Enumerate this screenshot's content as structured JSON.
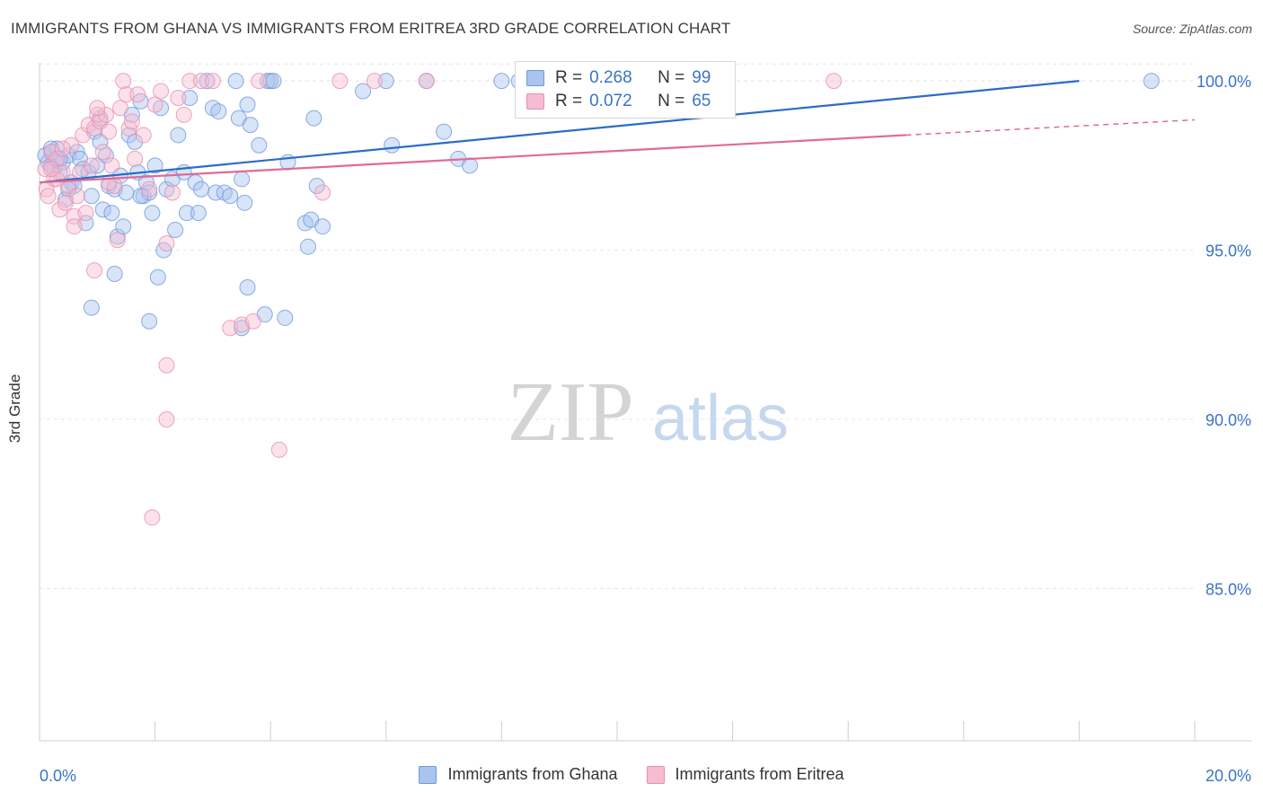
{
  "title": "IMMIGRANTS FROM GHANA VS IMMIGRANTS FROM ERITREA 3RD GRADE CORRELATION CHART",
  "source": "Source: ZipAtlas.com",
  "watermark": {
    "zip": "ZIP",
    "atlas": "atlas"
  },
  "legend_top": [
    {
      "r_label": "R =",
      "r_value": "0.268",
      "n_label": "N =",
      "n_value": "99"
    },
    {
      "r_label": "R =",
      "r_value": "0.072",
      "n_label": "N =",
      "n_value": "65"
    }
  ],
  "legend_bottom": [
    "Immigrants from Ghana",
    "Immigrants from Eritrea"
  ],
  "colors": {
    "ghana_fill": "#a9c4ee",
    "ghana_stroke": "#6f99dd",
    "ghana_line": "#2a6cc9",
    "eritrea_fill": "#f6bcd1",
    "eritrea_stroke": "#e98fb0",
    "eritrea_line": "#e06a95",
    "tick_text": "#3a73c8",
    "grid": "#e4e4e4"
  },
  "chart_data": {
    "type": "scatter",
    "title": "IMMIGRANTS FROM GHANA VS IMMIGRANTS FROM ERITREA 3RD GRADE CORRELATION CHART",
    "xlabel": "",
    "ylabel": "3rd Grade",
    "xlim": [
      0,
      20
    ],
    "ylim": [
      80.5,
      100.8
    ],
    "x_tick_labels": [
      "0.0%",
      "20.0%"
    ],
    "y_ticks": [
      85,
      90,
      95,
      100
    ],
    "y_tick_labels": [
      "85.0%",
      "90.0%",
      "95.0%",
      "100.0%"
    ],
    "grid": true,
    "legend_position": "top-center",
    "series": [
      {
        "name": "Immigrants from Ghana",
        "R": 0.268,
        "N": 99,
        "trend": {
          "x": [
            0,
            18
          ],
          "y": [
            97.0,
            100.0
          ],
          "dashed_to": null
        },
        "points": [
          [
            0.1,
            97.8
          ],
          [
            0.15,
            97.6
          ],
          [
            0.2,
            97.5
          ],
          [
            0.22,
            97.9
          ],
          [
            0.25,
            97.4
          ],
          [
            0.3,
            98.0
          ],
          [
            0.3,
            97.7
          ],
          [
            0.35,
            97.3
          ],
          [
            0.4,
            97.6
          ],
          [
            0.45,
            96.5
          ],
          [
            0.5,
            97.8
          ],
          [
            0.55,
            97.0
          ],
          [
            0.6,
            96.9
          ],
          [
            0.65,
            97.9
          ],
          [
            0.7,
            97.7
          ],
          [
            0.75,
            97.4
          ],
          [
            0.8,
            95.8
          ],
          [
            0.85,
            97.3
          ],
          [
            0.9,
            96.6
          ],
          [
            0.95,
            98.5
          ],
          [
            1.0,
            97.5
          ],
          [
            1.05,
            98.9
          ],
          [
            1.1,
            96.2
          ],
          [
            1.15,
            97.8
          ],
          [
            1.2,
            96.9
          ],
          [
            1.25,
            96.1
          ],
          [
            1.3,
            96.8
          ],
          [
            1.35,
            95.4
          ],
          [
            1.4,
            97.2
          ],
          [
            1.45,
            95.7
          ],
          [
            1.5,
            96.7
          ],
          [
            1.55,
            98.4
          ],
          [
            1.6,
            99.0
          ],
          [
            1.65,
            98.2
          ],
          [
            1.7,
            97.3
          ],
          [
            1.75,
            99.4
          ],
          [
            1.8,
            96.6
          ],
          [
            1.85,
            97.0
          ],
          [
            1.9,
            96.7
          ],
          [
            1.95,
            96.1
          ],
          [
            2.0,
            97.5
          ],
          [
            2.1,
            99.2
          ],
          [
            2.15,
            95.0
          ],
          [
            2.2,
            96.8
          ],
          [
            2.3,
            97.1
          ],
          [
            2.35,
            95.6
          ],
          [
            2.4,
            98.4
          ],
          [
            2.5,
            97.3
          ],
          [
            2.55,
            96.1
          ],
          [
            2.6,
            99.5
          ],
          [
            2.7,
            97.0
          ],
          [
            2.75,
            96.1
          ],
          [
            2.9,
            100.0
          ],
          [
            3.0,
            99.2
          ],
          [
            3.05,
            96.7
          ],
          [
            3.1,
            99.1
          ],
          [
            3.2,
            96.7
          ],
          [
            3.3,
            96.6
          ],
          [
            3.4,
            100.0
          ],
          [
            3.45,
            98.9
          ],
          [
            3.5,
            97.1
          ],
          [
            3.55,
            96.4
          ],
          [
            3.6,
            99.3
          ],
          [
            3.65,
            98.7
          ],
          [
            3.8,
            98.1
          ],
          [
            3.9,
            93.1
          ],
          [
            3.95,
            100.0
          ],
          [
            4.0,
            100.0
          ],
          [
            4.05,
            100.0
          ],
          [
            4.3,
            97.6
          ],
          [
            4.6,
            95.8
          ],
          [
            4.65,
            95.1
          ],
          [
            4.7,
            95.9
          ],
          [
            4.75,
            98.9
          ],
          [
            4.8,
            96.9
          ],
          [
            4.9,
            95.7
          ],
          [
            1.3,
            94.3
          ],
          [
            2.05,
            94.2
          ],
          [
            1.9,
            92.9
          ],
          [
            3.5,
            92.7
          ],
          [
            3.6,
            93.9
          ],
          [
            4.25,
            93.0
          ],
          [
            0.9,
            93.3
          ],
          [
            5.6,
            99.7
          ],
          [
            6.0,
            100.0
          ],
          [
            6.1,
            98.1
          ],
          [
            6.7,
            100.0
          ],
          [
            7.0,
            98.5
          ],
          [
            7.25,
            97.7
          ],
          [
            7.45,
            97.5
          ],
          [
            8.0,
            100.0
          ],
          [
            8.3,
            100.0
          ],
          [
            19.25,
            100.0
          ],
          [
            1.05,
            98.2
          ],
          [
            0.5,
            96.8
          ],
          [
            0.35,
            97.7
          ],
          [
            2.8,
            96.8
          ],
          [
            1.75,
            96.6
          ],
          [
            0.2,
            98.0
          ]
        ]
      },
      {
        "name": "Immigrants from Eritrea",
        "R": 0.072,
        "N": 65,
        "trend": {
          "x": [
            0,
            15.0
          ],
          "y": [
            97.0,
            98.4
          ],
          "dashed_to": [
            20,
            98.85
          ]
        },
        "points": [
          [
            0.1,
            97.4
          ],
          [
            0.12,
            96.8
          ],
          [
            0.15,
            96.6
          ],
          [
            0.2,
            97.9
          ],
          [
            0.25,
            97.1
          ],
          [
            0.3,
            97.7
          ],
          [
            0.35,
            96.2
          ],
          [
            0.4,
            97.3
          ],
          [
            0.45,
            96.4
          ],
          [
            0.5,
            96.9
          ],
          [
            0.55,
            98.1
          ],
          [
            0.6,
            96.0
          ],
          [
            0.65,
            96.6
          ],
          [
            0.7,
            97.3
          ],
          [
            0.75,
            98.4
          ],
          [
            0.8,
            96.1
          ],
          [
            0.85,
            98.7
          ],
          [
            0.9,
            97.5
          ],
          [
            0.95,
            98.6
          ],
          [
            1.0,
            99.0
          ],
          [
            1.05,
            98.8
          ],
          [
            1.1,
            97.9
          ],
          [
            1.15,
            99.0
          ],
          [
            1.2,
            98.5
          ],
          [
            1.25,
            97.5
          ],
          [
            1.3,
            96.9
          ],
          [
            1.35,
            95.3
          ],
          [
            1.4,
            99.2
          ],
          [
            1.45,
            100.0
          ],
          [
            1.5,
            99.6
          ],
          [
            1.55,
            98.6
          ],
          [
            1.6,
            98.8
          ],
          [
            1.65,
            97.7
          ],
          [
            1.7,
            99.6
          ],
          [
            1.8,
            98.4
          ],
          [
            1.9,
            96.8
          ],
          [
            2.0,
            99.3
          ],
          [
            2.1,
            99.7
          ],
          [
            2.2,
            95.2
          ],
          [
            2.3,
            96.7
          ],
          [
            2.4,
            99.5
          ],
          [
            2.5,
            99.0
          ],
          [
            2.6,
            100.0
          ],
          [
            2.8,
            100.0
          ],
          [
            3.0,
            100.0
          ],
          [
            3.3,
            92.7
          ],
          [
            3.5,
            92.8
          ],
          [
            3.7,
            92.9
          ],
          [
            3.8,
            100.0
          ],
          [
            4.9,
            96.7
          ],
          [
            5.2,
            100.0
          ],
          [
            5.8,
            100.0
          ],
          [
            6.7,
            100.0
          ],
          [
            13.75,
            100.0
          ],
          [
            0.95,
            94.4
          ],
          [
            2.2,
            91.6
          ],
          [
            2.2,
            90.0
          ],
          [
            1.95,
            87.1
          ],
          [
            4.15,
            89.1
          ],
          [
            0.6,
            95.7
          ],
          [
            0.3,
            97.1
          ],
          [
            0.2,
            97.4
          ],
          [
            1.2,
            97.0
          ],
          [
            0.4,
            98.0
          ],
          [
            1.0,
            99.2
          ]
        ]
      }
    ]
  }
}
